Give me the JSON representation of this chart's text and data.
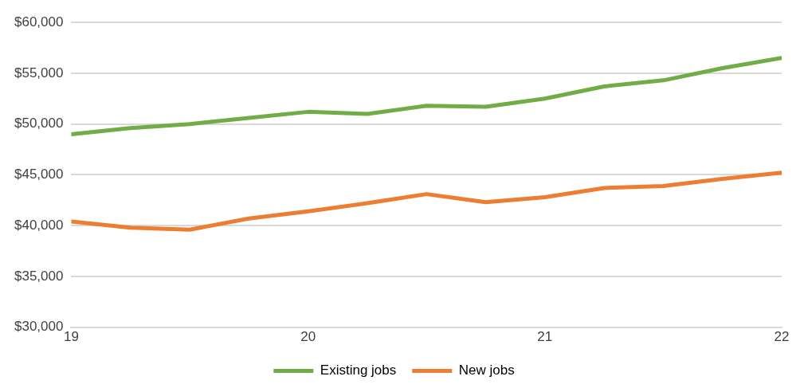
{
  "chart_data": {
    "type": "line",
    "x": [
      19,
      19.25,
      19.5,
      19.75,
      20,
      20.25,
      20.5,
      20.75,
      21,
      21.25,
      21.5,
      21.75,
      22
    ],
    "series": [
      {
        "name": "Existing jobs",
        "color": "#70ad47",
        "values": [
          49000,
          49600,
          50000,
          50600,
          51200,
          51000,
          51800,
          51700,
          52500,
          53700,
          54300,
          55500,
          56500
        ]
      },
      {
        "name": "New jobs",
        "color": "#ed7d31",
        "values": [
          40400,
          39800,
          39600,
          40700,
          41400,
          42200,
          43100,
          42300,
          42800,
          43700,
          43900,
          44600,
          45200
        ]
      }
    ],
    "xlim": [
      19,
      22
    ],
    "xticks": [
      19,
      20,
      21,
      22
    ],
    "ylim": [
      30000,
      60000
    ],
    "yticks": [
      {
        "value": 30000,
        "label": "$30,000"
      },
      {
        "value": 35000,
        "label": "$35,000"
      },
      {
        "value": 40000,
        "label": "$40,000"
      },
      {
        "value": 45000,
        "label": "$45,000"
      },
      {
        "value": 50000,
        "label": "$50,000"
      },
      {
        "value": 55000,
        "label": "$55,000"
      },
      {
        "value": 60000,
        "label": "$60,000"
      }
    ],
    "grid": "y",
    "legend": "bottom",
    "marker": "none",
    "line_style": "solid"
  }
}
